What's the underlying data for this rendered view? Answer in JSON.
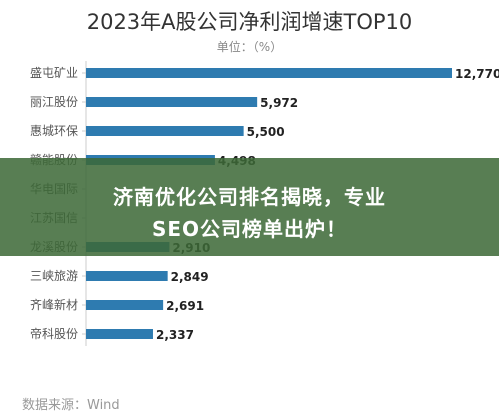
{
  "chart_data": {
    "type": "bar",
    "orientation": "horizontal",
    "title": "2023年A股公司净利润增速TOP10",
    "subtitle": "单位：（%）",
    "categories": [
      "盛屯矿业",
      "丽江股份",
      "惠城环保",
      "赣能股份",
      "华电国际",
      "江苏国信",
      "龙溪股份",
      "三峡旅游",
      "齐峰新材",
      "帝科股份"
    ],
    "values": [
      12770,
      5972,
      5500,
      4498,
      null,
      null,
      2910,
      2849,
      2691,
      2337
    ],
    "value_labels": [
      "12,770",
      "5,972",
      "5,500",
      "4,498",
      "",
      "",
      "2,910",
      "2,849",
      "2,691",
      "2,337"
    ],
    "xlim": [
      0,
      12770
    ],
    "grid": false,
    "bar_color": "#2e7bb0",
    "source": "数据来源：Wind"
  },
  "overlay": {
    "line1": "济南优化公司排名揭晓，专业",
    "line2": "SEO公司榜单出炉！",
    "color": "#3c6937"
  }
}
